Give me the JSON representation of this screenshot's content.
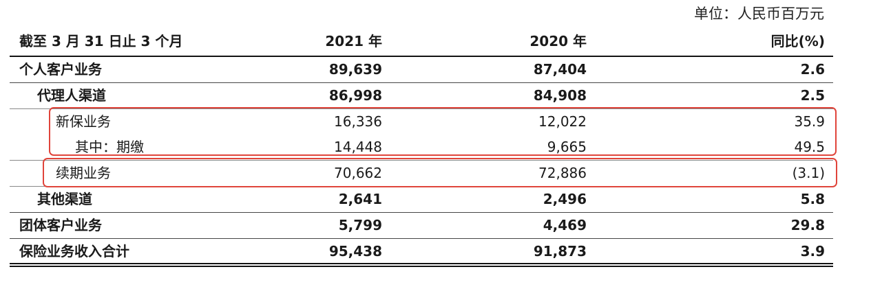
{
  "unit_note": "单位：人民币百万元",
  "header": {
    "label": "截至 3 月 31 日止 3 个月",
    "col_2021": "2021 年",
    "col_2020": "2020 年",
    "col_yoy": "同比(%)"
  },
  "rows": [
    {
      "label": "个人客户业务",
      "v2021": "89,639",
      "v2020": "87,404",
      "yoy": "2.6"
    },
    {
      "label": "代理人渠道",
      "v2021": "86,998",
      "v2020": "84,908",
      "yoy": "2.5"
    },
    {
      "label": "新保业务",
      "v2021": "16,336",
      "v2020": "12,022",
      "yoy": "35.9"
    },
    {
      "label": "其中：期缴",
      "v2021": "14,448",
      "v2020": "9,665",
      "yoy": "49.5"
    },
    {
      "label": "续期业务",
      "v2021": "70,662",
      "v2020": "72,886",
      "yoy": "(3.1)"
    },
    {
      "label": "其他渠道",
      "v2021": "2,641",
      "v2020": "2,496",
      "yoy": "5.8"
    },
    {
      "label": "团体客户业务",
      "v2021": "5,799",
      "v2020": "4,469",
      "yoy": "29.8"
    },
    {
      "label": "保险业务收入合计",
      "v2021": "95,438",
      "v2020": "91,873",
      "yoy": "3.9"
    }
  ],
  "highlight_color": "#e0443a"
}
